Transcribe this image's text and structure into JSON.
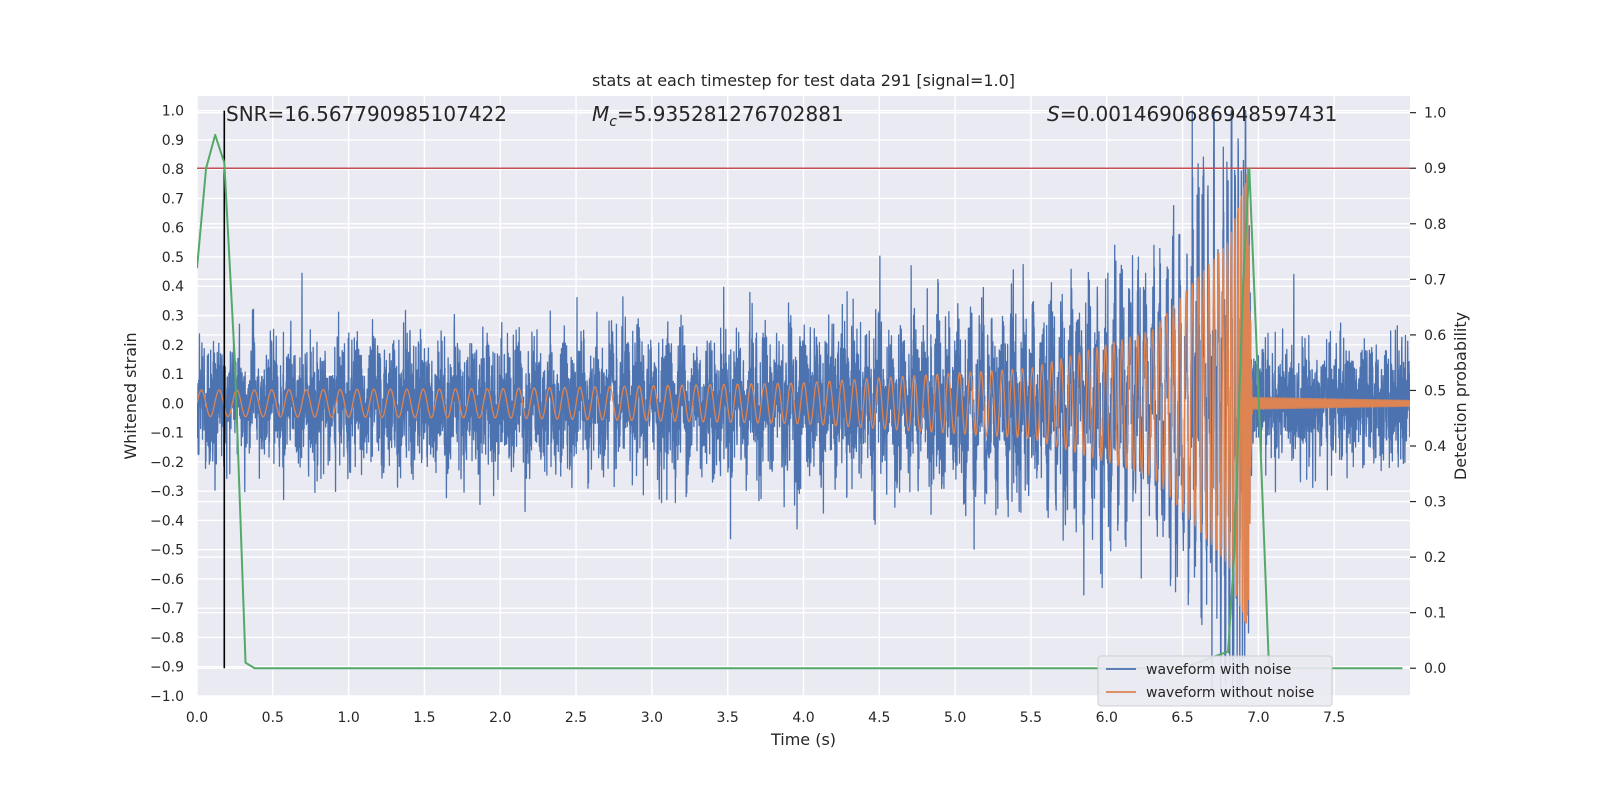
{
  "chart_data": {
    "type": "line",
    "title": "stats at each timestep for test data 291 [signal=1.0]",
    "xlabel": "Time (s)",
    "ylabel": "Whitened strain",
    "y2label": "Detection probability",
    "xlim": [
      0.0,
      8.0
    ],
    "ylim": [
      -1.0,
      1.05
    ],
    "y2lim": [
      -0.05,
      1.03
    ],
    "x_ticks": [
      "0.0",
      "0.5",
      "1.0",
      "1.5",
      "2.0",
      "2.5",
      "3.0",
      "3.5",
      "4.0",
      "4.5",
      "5.0",
      "5.5",
      "6.0",
      "6.5",
      "7.0",
      "7.5"
    ],
    "y_ticks": [
      "1.0",
      "0.9",
      "0.8",
      "0.7",
      "0.6",
      "0.5",
      "0.4",
      "0.3",
      "0.2",
      "0.1",
      "0.0",
      "−0.1",
      "−0.2",
      "−0.3",
      "−0.4",
      "−0.5",
      "−0.6",
      "−0.7",
      "−0.8",
      "−0.9",
      "−1.0"
    ],
    "y2_ticks": [
      "1.0",
      "0.9",
      "0.8",
      "0.7",
      "0.6",
      "0.5",
      "0.4",
      "0.3",
      "0.2",
      "0.1",
      "0.0"
    ],
    "grid": true,
    "legend_position": "lower-right",
    "annotations": {
      "snr": "SNR=16.567790985107422",
      "mc_symbol": "M",
      "mc_sub": "c",
      "mc_value": "=5.935281276702881",
      "s_symbol": "S",
      "s_value": "=0.0014690686948597431"
    },
    "threshold_y2": 0.9,
    "vline_x": 0.18,
    "series": [
      {
        "name": "waveform with noise",
        "color": "#4c72b0",
        "noise_std": 0.1,
        "noise_envelope": [
          [
            0.0,
            1.0
          ],
          [
            4.0,
            1.2
          ],
          [
            5.5,
            1.5
          ],
          [
            6.5,
            2.0
          ],
          [
            6.9,
            3.5
          ],
          [
            6.93,
            1.0
          ],
          [
            8.0,
            1.0
          ]
        ]
      },
      {
        "name": "waveform without noise",
        "color": "#dd8452",
        "amplitude": [
          [
            0.0,
            0.045
          ],
          [
            2.0,
            0.05
          ],
          [
            4.0,
            0.07
          ],
          [
            5.5,
            0.12
          ],
          [
            6.3,
            0.25
          ],
          [
            6.8,
            0.55
          ],
          [
            6.93,
            0.8
          ],
          [
            6.96,
            0.02
          ],
          [
            8.0,
            0.01
          ]
        ],
        "merger_time": 6.93
      },
      {
        "name": "detection probability",
        "color": "#55a868",
        "x": [
          0.0,
          0.06,
          0.12,
          0.18,
          0.25,
          0.32,
          0.38,
          0.6,
          1.0,
          2.0,
          3.0,
          4.0,
          5.0,
          6.0,
          6.5,
          6.8,
          6.84,
          6.9,
          6.94,
          7.0,
          7.07,
          7.5,
          7.95
        ],
        "y": [
          0.72,
          0.9,
          0.96,
          0.91,
          0.55,
          0.01,
          0.0,
          0.0,
          0.0,
          0.0,
          0.0,
          0.0,
          0.0,
          0.0,
          0.0,
          0.03,
          0.2,
          0.7,
          0.9,
          0.5,
          0.0,
          0.0,
          0.0
        ]
      }
    ]
  }
}
